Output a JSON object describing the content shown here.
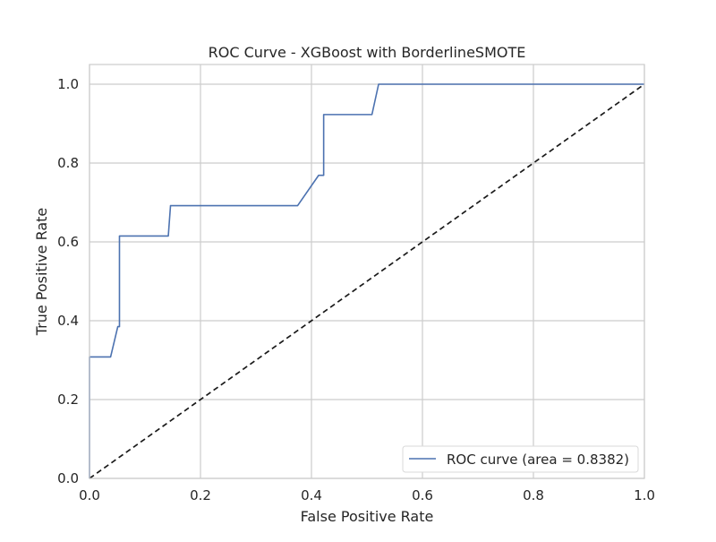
{
  "chart_data": {
    "type": "line",
    "title": "ROC Curve - XGBoost with BorderlineSMOTE",
    "xlabel": "False Positive Rate",
    "ylabel": "True Positive Rate",
    "xlim": [
      0.0,
      1.0
    ],
    "ylim": [
      0.0,
      1.05
    ],
    "xticks": [
      "0.0",
      "0.2",
      "0.4",
      "0.6",
      "0.8",
      "1.0"
    ],
    "yticks": [
      "0.0",
      "0.2",
      "0.4",
      "0.6",
      "0.8",
      "1.0"
    ],
    "grid": true,
    "legend_position": "bottom-right",
    "series": [
      {
        "name": "ROC curve (area = 0.8382)",
        "color": "#4c72b0",
        "style": "solid",
        "x": [
          0.0,
          0.0,
          0.038,
          0.051,
          0.054,
          0.054,
          0.142,
          0.146,
          0.146,
          0.375,
          0.413,
          0.413,
          0.42,
          0.422,
          0.422,
          0.509,
          0.521,
          0.521,
          1.0
        ],
        "y": [
          0.0,
          0.308,
          0.308,
          0.385,
          0.385,
          0.615,
          0.615,
          0.692,
          0.692,
          0.692,
          0.769,
          0.769,
          0.769,
          0.769,
          0.923,
          0.923,
          1.0,
          1.0,
          1.0
        ]
      },
      {
        "color": "#1a1a1a",
        "style": "dashed",
        "x": [
          0.0,
          1.0
        ],
        "y": [
          0.0,
          1.0
        ]
      }
    ]
  }
}
